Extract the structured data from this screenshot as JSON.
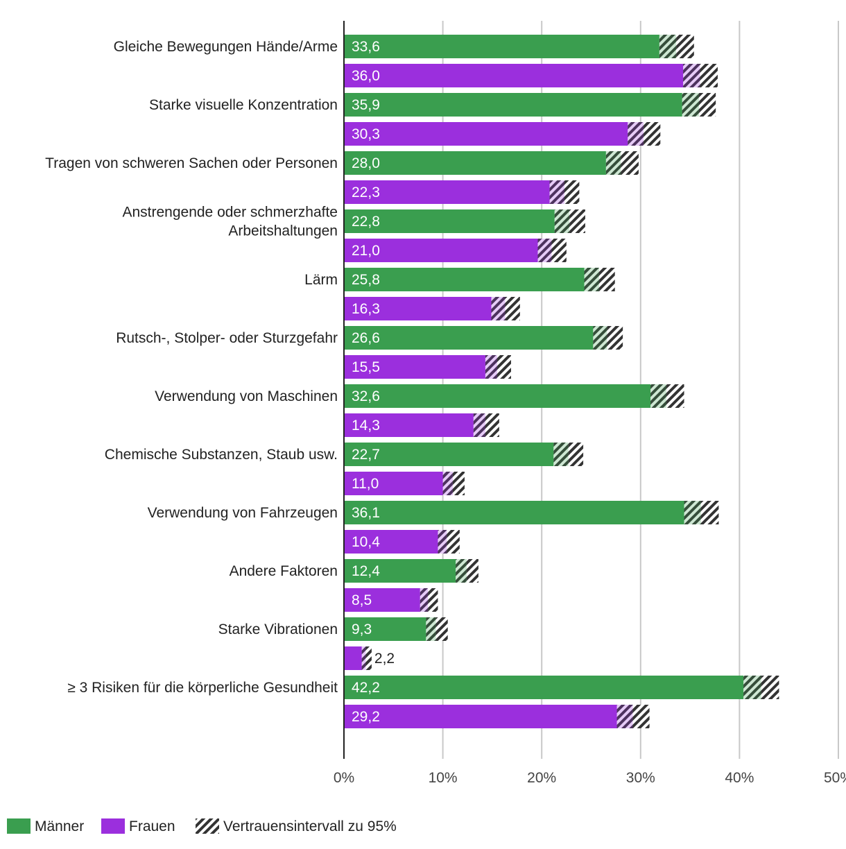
{
  "chart_data": {
    "type": "bar",
    "orientation": "horizontal",
    "categories": [
      "Gleiche Bewegungen Hände/Arme",
      "Starke visuelle Konzentration",
      "Tragen von schweren Sachen oder Personen",
      "Anstrengende oder schmerzhafte Arbeitshaltungen",
      "Lärm",
      "Rutsch-, Stolper- oder Sturzgefahr",
      "Verwendung von Maschinen",
      "Chemische Substanzen, Staub usw.",
      "Verwendung von Fahrzeugen",
      "Andere Faktoren",
      "Starke Vibrationen",
      "≥ 3 Risiken für die körperliche Gesundheit"
    ],
    "category_lines": [
      [
        "Gleiche Bewegungen Hände/Arme"
      ],
      [
        "Starke visuelle Konzentration"
      ],
      [
        "Tragen von schweren Sachen oder Personen"
      ],
      [
        "Anstrengende oder schmerzhafte",
        "Arbeitshaltungen"
      ],
      [
        "Lärm"
      ],
      [
        "Rutsch-, Stolper- oder Sturzgefahr"
      ],
      [
        "Verwendung von Maschinen"
      ],
      [
        "Chemische Substanzen, Staub usw."
      ],
      [
        "Verwendung von Fahrzeugen"
      ],
      [
        "Andere Faktoren"
      ],
      [
        "Starke Vibrationen"
      ],
      [
        "≥ 3 Risiken für die körperliche Gesundheit"
      ]
    ],
    "series": [
      {
        "name": "Männer",
        "color": "#3a9e4f",
        "values": [
          33.6,
          35.9,
          28.0,
          22.8,
          25.8,
          26.6,
          32.6,
          22.7,
          36.1,
          12.4,
          9.3,
          42.2
        ],
        "labels": [
          "33,6",
          "35,9",
          "28,0",
          "22,8",
          "25,8",
          "26,6",
          "32,6",
          "22,7",
          "36,1",
          "12,4",
          "9,3",
          "42,2"
        ],
        "ci_low": [
          31.9,
          34.2,
          26.5,
          21.3,
          24.3,
          25.2,
          31.0,
          21.2,
          34.4,
          11.3,
          8.3,
          40.4
        ],
        "ci_high": [
          35.4,
          37.6,
          29.8,
          24.4,
          27.4,
          28.2,
          34.4,
          24.2,
          37.9,
          13.6,
          10.5,
          44.0
        ]
      },
      {
        "name": "Frauen",
        "color": "#9b2fdd",
        "values": [
          36.0,
          30.3,
          22.3,
          21.0,
          16.3,
          15.5,
          14.3,
          11.0,
          10.4,
          8.5,
          2.2,
          29.2
        ],
        "labels": [
          "36,0",
          "30,3",
          "22,3",
          "21,0",
          "16,3",
          "15,5",
          "14,3",
          "11,0",
          "10,4",
          "8,5",
          "2,2",
          "29,2"
        ],
        "ci_low": [
          34.3,
          28.7,
          20.8,
          19.6,
          14.9,
          14.3,
          13.1,
          10.0,
          9.5,
          7.7,
          1.8,
          27.6
        ],
        "ci_high": [
          37.8,
          32.0,
          23.8,
          22.5,
          17.8,
          16.9,
          15.7,
          12.2,
          11.7,
          9.5,
          2.8,
          30.9
        ]
      }
    ],
    "x_ticks": [
      "0%",
      "10%",
      "20%",
      "30%",
      "40%",
      "50%"
    ],
    "xlim": [
      0,
      50
    ],
    "title": "",
    "xlabel": "",
    "ylabel": "",
    "grid": true,
    "legend": {
      "position": "bottom-left",
      "items": [
        "Männer",
        "Frauen",
        "Vertrauensintervall zu 95%"
      ]
    },
    "ci_label": "Vertrauensintervall zu 95%",
    "colors": {
      "grid": "#c8c8c8",
      "axis": "#222222",
      "hatch": "#333333"
    }
  }
}
